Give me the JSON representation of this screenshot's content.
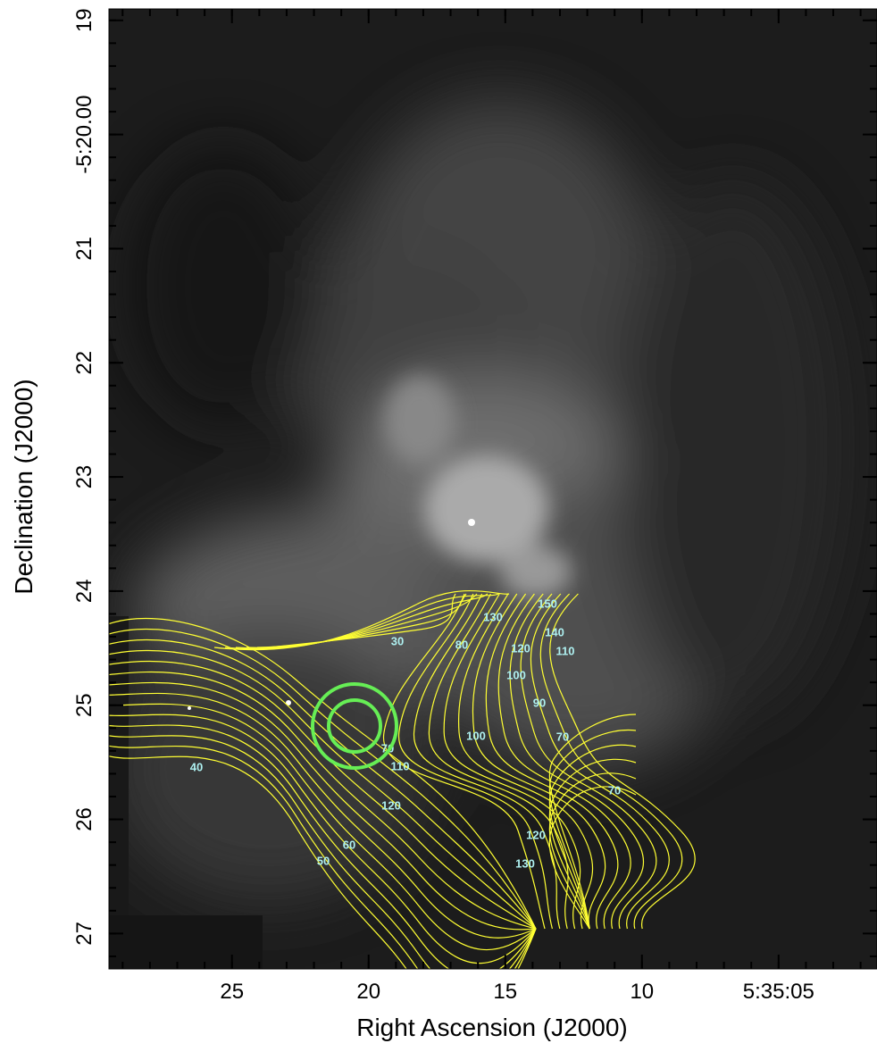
{
  "chart_data": {
    "type": "image",
    "xlabel": "Right Ascension (J2000)",
    "ylabel": "Declination (J2000)",
    "xlim": [
      29.5,
      1.4
    ],
    "xticks": [
      25,
      20,
      15,
      10,
      {
        "value": 5,
        "label": "5:35:05"
      }
    ],
    "ylim": [
      27.31,
      18.9
    ],
    "yticks": [
      19,
      {
        "value": 20,
        "label": "-5:20.00"
      },
      21,
      22,
      23,
      24,
      25,
      26,
      27
    ],
    "contour_color": "#ffff33",
    "contour_labels": [
      150,
      130,
      140,
      30,
      80,
      120,
      110,
      100,
      90,
      100,
      70,
      70,
      110,
      40,
      70,
      120,
      120,
      60,
      50,
      130
    ],
    "contour_label_color": "#aef0f0",
    "circle_color": "#66ee55"
  }
}
